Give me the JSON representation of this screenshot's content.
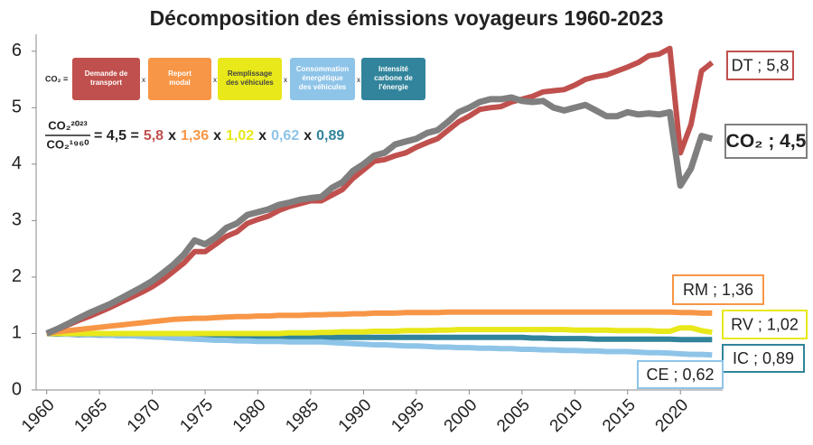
{
  "chart_data": {
    "type": "line",
    "title": "Décomposition des émissions voyageurs 1960-2023",
    "x": [
      1960,
      1961,
      1962,
      1963,
      1964,
      1965,
      1966,
      1967,
      1968,
      1969,
      1970,
      1971,
      1972,
      1973,
      1974,
      1975,
      1976,
      1977,
      1978,
      1979,
      1980,
      1981,
      1982,
      1983,
      1984,
      1985,
      1986,
      1987,
      1988,
      1989,
      1990,
      1991,
      1992,
      1993,
      1994,
      1995,
      1996,
      1997,
      1998,
      1999,
      2000,
      2001,
      2002,
      2003,
      2004,
      2005,
      2006,
      2007,
      2008,
      2009,
      2010,
      2011,
      2012,
      2013,
      2014,
      2015,
      2016,
      2017,
      2018,
      2019,
      2020,
      2021,
      2022,
      2023
    ],
    "xlim": [
      1959,
      2024
    ],
    "xticks": [
      1960,
      1965,
      1970,
      1975,
      1980,
      1985,
      1990,
      1995,
      2000,
      2005,
      2010,
      2015,
      2020
    ],
    "ylim": [
      0,
      6.3
    ],
    "yticks": [
      0,
      1,
      2,
      3,
      4,
      5,
      6
    ],
    "grid": false,
    "series": [
      {
        "name": "IC ; 0,89",
        "color": "#31849b",
        "values": [
          1.0,
          0.99,
          0.99,
          0.98,
          0.98,
          0.97,
          0.97,
          0.96,
          0.96,
          0.96,
          0.95,
          0.95,
          0.95,
          0.95,
          0.94,
          0.94,
          0.94,
          0.94,
          0.94,
          0.94,
          0.94,
          0.94,
          0.93,
          0.93,
          0.93,
          0.93,
          0.93,
          0.93,
          0.93,
          0.93,
          0.93,
          0.93,
          0.93,
          0.93,
          0.93,
          0.93,
          0.93,
          0.93,
          0.93,
          0.93,
          0.93,
          0.93,
          0.93,
          0.93,
          0.93,
          0.93,
          0.92,
          0.92,
          0.91,
          0.91,
          0.91,
          0.91,
          0.9,
          0.9,
          0.9,
          0.9,
          0.9,
          0.9,
          0.9,
          0.9,
          0.89,
          0.89,
          0.89,
          0.89
        ]
      },
      {
        "name": "CE ; 0,62",
        "color": "#8ec4e8",
        "values": [
          1.0,
          1.0,
          0.99,
          0.99,
          0.98,
          0.98,
          0.97,
          0.96,
          0.96,
          0.95,
          0.94,
          0.93,
          0.92,
          0.91,
          0.9,
          0.89,
          0.88,
          0.88,
          0.87,
          0.87,
          0.86,
          0.86,
          0.86,
          0.85,
          0.85,
          0.85,
          0.85,
          0.84,
          0.83,
          0.82,
          0.81,
          0.8,
          0.8,
          0.79,
          0.78,
          0.78,
          0.77,
          0.76,
          0.76,
          0.75,
          0.75,
          0.74,
          0.74,
          0.73,
          0.73,
          0.72,
          0.72,
          0.71,
          0.71,
          0.7,
          0.7,
          0.69,
          0.69,
          0.68,
          0.68,
          0.68,
          0.67,
          0.66,
          0.66,
          0.65,
          0.64,
          0.63,
          0.63,
          0.62
        ]
      },
      {
        "name": "RV ; 1,02",
        "color": "#e8e81a",
        "values": [
          1.0,
          1.0,
          1.0,
          1.0,
          1.0,
          1.0,
          1.0,
          1.0,
          1.0,
          1.0,
          1.0,
          1.0,
          1.0,
          1.0,
          1.0,
          1.0,
          1.0,
          1.0,
          1.0,
          1.0,
          1.0,
          1.0,
          1.0,
          1.01,
          1.01,
          1.01,
          1.02,
          1.02,
          1.03,
          1.03,
          1.03,
          1.04,
          1.04,
          1.04,
          1.05,
          1.05,
          1.05,
          1.06,
          1.06,
          1.07,
          1.07,
          1.07,
          1.07,
          1.07,
          1.07,
          1.07,
          1.07,
          1.07,
          1.07,
          1.07,
          1.06,
          1.06,
          1.06,
          1.06,
          1.05,
          1.05,
          1.05,
          1.05,
          1.04,
          1.04,
          1.1,
          1.1,
          1.05,
          1.02
        ]
      },
      {
        "name": "RM ; 1,36",
        "color": "#f79646",
        "values": [
          1.0,
          1.03,
          1.05,
          1.07,
          1.09,
          1.11,
          1.13,
          1.15,
          1.17,
          1.19,
          1.21,
          1.23,
          1.25,
          1.26,
          1.27,
          1.27,
          1.28,
          1.29,
          1.3,
          1.3,
          1.31,
          1.31,
          1.32,
          1.32,
          1.32,
          1.33,
          1.33,
          1.34,
          1.34,
          1.35,
          1.35,
          1.36,
          1.36,
          1.36,
          1.37,
          1.37,
          1.37,
          1.37,
          1.38,
          1.38,
          1.38,
          1.38,
          1.38,
          1.38,
          1.38,
          1.38,
          1.38,
          1.38,
          1.38,
          1.38,
          1.38,
          1.38,
          1.38,
          1.38,
          1.38,
          1.38,
          1.38,
          1.38,
          1.38,
          1.38,
          1.37,
          1.37,
          1.36,
          1.36
        ]
      },
      {
        "name": "DT ; 5,8",
        "color": "#c0504d",
        "values": [
          1.0,
          1.07,
          1.15,
          1.23,
          1.3,
          1.38,
          1.46,
          1.55,
          1.64,
          1.73,
          1.83,
          1.95,
          2.1,
          2.25,
          2.45,
          2.45,
          2.58,
          2.72,
          2.8,
          2.95,
          3.02,
          3.08,
          3.18,
          3.25,
          3.3,
          3.35,
          3.35,
          3.45,
          3.55,
          3.75,
          3.9,
          4.05,
          4.08,
          4.15,
          4.2,
          4.3,
          4.38,
          4.45,
          4.6,
          4.75,
          4.85,
          4.97,
          5.0,
          5.02,
          5.1,
          5.15,
          5.2,
          5.28,
          5.3,
          5.32,
          5.4,
          5.5,
          5.55,
          5.58,
          5.65,
          5.72,
          5.8,
          5.92,
          5.95,
          6.05,
          4.2,
          4.7,
          5.65,
          5.8
        ]
      },
      {
        "name": "CO₂ ; 4,5",
        "color": "#7f7f7f",
        "values": [
          1.0,
          1.08,
          1.17,
          1.27,
          1.36,
          1.44,
          1.52,
          1.62,
          1.72,
          1.82,
          1.93,
          2.07,
          2.22,
          2.4,
          2.65,
          2.58,
          2.7,
          2.87,
          2.95,
          3.1,
          3.15,
          3.2,
          3.28,
          3.32,
          3.37,
          3.4,
          3.42,
          3.58,
          3.68,
          3.88,
          4.0,
          4.15,
          4.2,
          4.35,
          4.4,
          4.45,
          4.55,
          4.6,
          4.75,
          4.92,
          5.0,
          5.1,
          5.15,
          5.15,
          5.18,
          5.12,
          5.1,
          5.12,
          5.0,
          4.95,
          5.0,
          5.05,
          4.95,
          4.85,
          4.85,
          4.92,
          4.88,
          4.9,
          4.88,
          4.92,
          3.62,
          3.92,
          4.5,
          4.45
        ]
      }
    ],
    "decomposition": {
      "prefix": "CO₂ =",
      "operator": "x",
      "terms": [
        [
          "Demande de",
          "transport"
        ],
        [
          "Report",
          "modal"
        ],
        [
          "Remplissage",
          "des véhicules"
        ],
        [
          "Consommation",
          "énergétique",
          "des véhicules"
        ],
        [
          "Intensité",
          "carbone de",
          "l'énergie"
        ]
      ]
    },
    "formula": {
      "numerator": "CO₂²⁰²³",
      "denominator": "CO₂¹⁹⁶⁰",
      "equals": "= 4,5 =",
      "factors": [
        "5,8",
        "1,36",
        "1,02",
        "0,62",
        "0,89"
      ]
    }
  }
}
